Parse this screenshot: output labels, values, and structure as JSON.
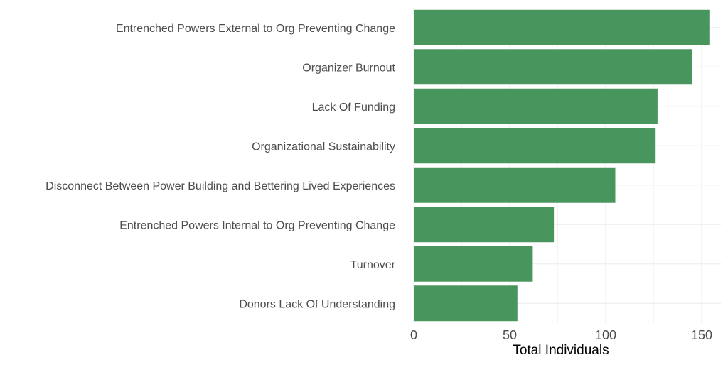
{
  "chart_data": {
    "type": "bar",
    "orientation": "horizontal",
    "categories": [
      "Entrenched Powers External to Org Preventing Change",
      "Organizer Burnout",
      "Lack Of Funding",
      "Organizational Sustainability",
      "Disconnect Between Power Building and Bettering Lived Experiences",
      "Entrenched Powers Internal to Org Preventing Change",
      "Turnover",
      "Donors Lack Of Understanding"
    ],
    "values": [
      154,
      145,
      127,
      126,
      105,
      73,
      62,
      54
    ],
    "xlabel": "Total Individuals",
    "ylabel": "",
    "xlim": [
      0,
      160
    ],
    "xticks": [
      0,
      50,
      100,
      150
    ],
    "bar_color": "#48965e",
    "grid": true,
    "legend": "none"
  }
}
